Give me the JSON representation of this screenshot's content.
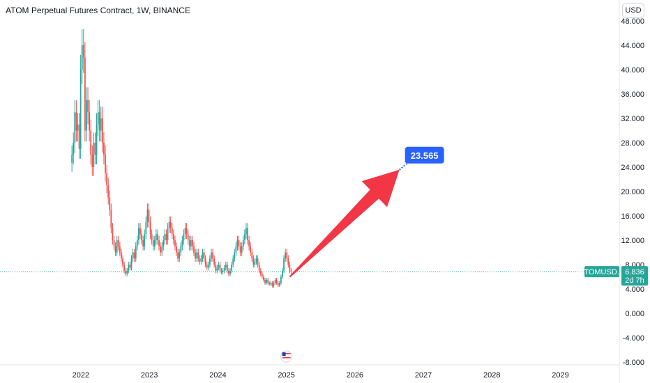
{
  "header": {
    "title": "ATOM Perpetual Futures Contract, 1W, BINANCE",
    "currency": "USD"
  },
  "chart_data": {
    "type": "candlestick",
    "symbol": "ATOMUSD.P",
    "last_price": "6.836",
    "countdown": "2d 7h",
    "last_price_value": 6.836,
    "ylim": [
      -8,
      48
    ],
    "y_ticks": [
      "-8.000",
      "-4.000",
      "0.000",
      "4.000",
      "8.000",
      "12.000",
      "16.000",
      "20.000",
      "24.000",
      "28.000",
      "32.000",
      "36.000",
      "40.000",
      "44.000",
      "48.000"
    ],
    "y_tick_values": [
      -8,
      -4,
      0,
      4,
      8,
      12,
      16,
      20,
      24,
      28,
      32,
      36,
      40,
      44,
      48
    ],
    "x_ticks": [
      "2022",
      "2023",
      "2024",
      "2025",
      "2026",
      "2027",
      "2028",
      "2029"
    ],
    "xlim": [
      2020.82,
      2029.86
    ],
    "arrow": {
      "from": [
        2025.05,
        6.0
      ],
      "to": [
        2026.65,
        23.565
      ]
    },
    "target": {
      "label": "23.565",
      "value": 23.565,
      "x": 2026.65
    },
    "candles_close": [
      26,
      28,
      33,
      30,
      31,
      27,
      40,
      44,
      42,
      30,
      35,
      33,
      30,
      26,
      24,
      28,
      26,
      31,
      33,
      30,
      32,
      28,
      26,
      23,
      21,
      19,
      17,
      14,
      12,
      11,
      10,
      12,
      11,
      10,
      9,
      8,
      7,
      6.5,
      7,
      8,
      7.5,
      9,
      10,
      9,
      11,
      12,
      14,
      13,
      12,
      11,
      13,
      15,
      17,
      15,
      13,
      12,
      11,
      12,
      13,
      12,
      11,
      10,
      11,
      12,
      13,
      12,
      14,
      15,
      14,
      13,
      12,
      11,
      10,
      9,
      10,
      11,
      12,
      13,
      14,
      13,
      12,
      11,
      12,
      11,
      10,
      9,
      10,
      9,
      8.5,
      9,
      10,
      9,
      8,
      7.5,
      8,
      9,
      10,
      9,
      8,
      7,
      7.5,
      8,
      7,
      6.8,
      7,
      7.5,
      8,
      7,
      6.5,
      7,
      8,
      9,
      10,
      11,
      12,
      11,
      10,
      11,
      12,
      13,
      14,
      12,
      11,
      10,
      9,
      8,
      8.5,
      9,
      8,
      7,
      6.5,
      6,
      5.5,
      5,
      5.5,
      5,
      4.8,
      5,
      4.5,
      5,
      5.5,
      5,
      4.6,
      5,
      6,
      7,
      9,
      10,
      9,
      8,
      7,
      6.8
    ],
    "up_color": "#26a69a",
    "down_color": "#ef5350",
    "arrow_color": "#f23645",
    "callout_color": "#2962ff",
    "price_line_color": "#26a69a"
  }
}
